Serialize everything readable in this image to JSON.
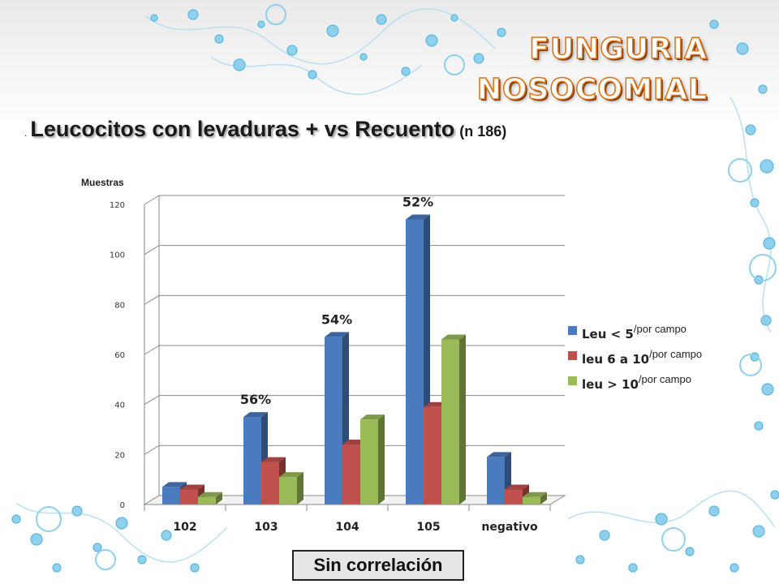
{
  "slide": {
    "title_line1": "FUNGURIA",
    "title_line2": "NOSOCOMIAL",
    "subtitle_bullet": ".",
    "subtitle": "Leucocitos con levaduras + vs Recuento",
    "subtitle_n": "(n 186)",
    "conclusion": "Sin correlación"
  },
  "legend": {
    "items": [
      {
        "label": "Leu < 5",
        "unit": "/por campo"
      },
      {
        "label": "leu 6 a 10",
        "unit": "/por campo"
      },
      {
        "label": "leu > 10",
        "unit": "/por campo"
      }
    ]
  },
  "colors": {
    "series": [
      "#4a7bbf",
      "#c0504d",
      "#9bbb59"
    ],
    "title": "#e07010"
  },
  "chart_data": {
    "type": "bar",
    "ylabel": "Muestras",
    "categories": [
      "102",
      "103",
      "104",
      "105",
      "negativo"
    ],
    "series": [
      {
        "name": "Leu < 5 /por campo",
        "values": [
          7,
          35,
          67,
          114,
          19
        ]
      },
      {
        "name": "leu 6 a 10 /por campo",
        "values": [
          6,
          17,
          24,
          39,
          6
        ]
      },
      {
        "name": "leu > 10 /por campo",
        "values": [
          3,
          11,
          34,
          66,
          3
        ]
      }
    ],
    "ylim": [
      0,
      120
    ],
    "yticks": [
      0,
      20,
      40,
      60,
      80,
      100,
      120
    ],
    "grid": true,
    "legend_position": "right",
    "annotations": [
      {
        "category": "103",
        "text": "56%"
      },
      {
        "category": "104",
        "text": "54%"
      },
      {
        "category": "105",
        "text": "52%"
      }
    ]
  }
}
